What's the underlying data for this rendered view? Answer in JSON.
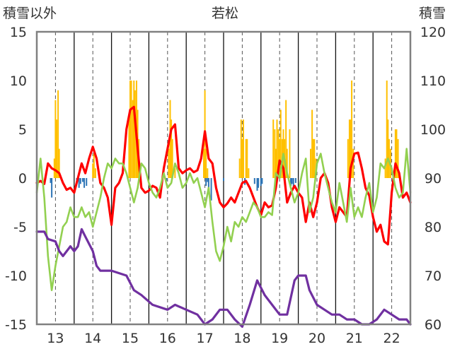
{
  "chart_data": {
    "type": "bar+line",
    "title": "若松",
    "ylabel_left": "積雪以外",
    "ylabel_right": "積雪",
    "x_ticks": [
      "13",
      "14",
      "15",
      "16",
      "17",
      "18",
      "19",
      "20",
      "21",
      "22"
    ],
    "xlim": [
      12.5,
      22.5
    ],
    "ylim_left": [
      -15,
      15
    ],
    "ylim_right": [
      60,
      120
    ],
    "y_ticks_left": [
      "15",
      "10",
      "5",
      "0",
      "-5",
      "-10",
      "-15"
    ],
    "y_ticks_right": [
      "120",
      "110",
      "100",
      "90",
      "80",
      "70",
      "60"
    ],
    "grid": "vertical-dashed",
    "colors": {
      "snowfall_bars": "#FFC000",
      "precip_bars": "#2E75B6",
      "red_line": "#FF0000",
      "green_line": "#92D050",
      "purple_line": "#7030A0",
      "frame": "#808080"
    },
    "series": [
      {
        "type": "bar",
        "axis": "left",
        "color": "#FFC000",
        "x": [
          12.97,
          13.0,
          13.03,
          13.07,
          13.1,
          14.0,
          14.03,
          14.07,
          14.97,
          15.0,
          15.03,
          15.07,
          15.1,
          15.13,
          15.17,
          15.2,
          15.23,
          16.03,
          16.07,
          16.1,
          16.13,
          16.2,
          16.97,
          17.0,
          17.03,
          17.07,
          17.93,
          17.97,
          18.0,
          18.03,
          18.1,
          18.13,
          18.17,
          18.83,
          18.87,
          18.9,
          18.93,
          18.97,
          19.0,
          19.03,
          19.07,
          19.1,
          19.13,
          19.17,
          19.2,
          19.27,
          19.83,
          19.87,
          19.9,
          19.93,
          19.97,
          20.83,
          20.87,
          20.9,
          20.93,
          20.97,
          21.83,
          21.87,
          21.9,
          21.93,
          21.97,
          22.1,
          22.13,
          22.17
        ],
        "values": [
          2,
          8,
          6,
          9,
          3,
          1.5,
          2.5,
          1.0,
          6,
          10,
          10,
          8,
          10,
          9,
          10,
          7,
          4,
          3,
          8,
          6,
          4,
          1,
          3,
          9,
          3,
          1,
          2,
          6,
          4,
          6,
          4,
          4,
          1,
          6,
          5,
          3,
          6,
          5,
          4,
          7,
          4,
          5,
          4,
          8,
          3,
          5,
          3,
          7,
          4,
          4,
          2,
          4,
          6,
          6,
          10,
          3,
          2,
          10,
          6,
          4,
          3,
          5,
          5,
          4
        ]
      },
      {
        "type": "bar",
        "axis": "left",
        "color": "#2E75B6",
        "x": [
          12.87,
          12.9,
          13.57,
          13.63,
          13.67,
          13.73,
          13.77,
          13.83,
          15.97,
          17.03,
          17.07,
          17.1,
          17.17,
          17.5,
          18.07,
          18.33,
          18.4,
          18.43,
          18.5,
          18.53,
          19.3,
          19.33,
          19.37,
          19.43
        ],
        "values": [
          -0.5,
          -2,
          -0.5,
          -1,
          -0.6,
          -0.4,
          -1,
          -0.8,
          -0.3,
          -0.8,
          -0.4,
          -1.3,
          -2.3,
          -0.3,
          -0.7,
          -0.6,
          -1.3,
          -1.0,
          -0.8,
          -0.6,
          -0.8,
          -0.6,
          -1.0,
          -0.5
        ]
      },
      {
        "type": "line",
        "axis": "left",
        "color": "#FF0000",
        "x": [
          12.5,
          12.6,
          12.7,
          12.8,
          12.9,
          13.0,
          13.1,
          13.2,
          13.3,
          13.4,
          13.5,
          13.6,
          13.7,
          13.8,
          13.9,
          14.0,
          14.1,
          14.2,
          14.3,
          14.4,
          14.5,
          14.6,
          14.7,
          14.8,
          14.9,
          15.0,
          15.1,
          15.2,
          15.3,
          15.4,
          15.5,
          15.6,
          15.7,
          15.8,
          15.9,
          16.0,
          16.1,
          16.2,
          16.3,
          16.4,
          16.5,
          16.6,
          16.7,
          16.8,
          16.9,
          17.0,
          17.1,
          17.2,
          17.3,
          17.4,
          17.5,
          17.6,
          17.7,
          17.8,
          17.9,
          18.0,
          18.1,
          18.2,
          18.3,
          18.4,
          18.5,
          18.6,
          18.7,
          18.8,
          18.9,
          19.0,
          19.1,
          19.2,
          19.3,
          19.4,
          19.5,
          19.6,
          19.7,
          19.8,
          19.9,
          20.0,
          20.1,
          20.2,
          20.3,
          20.4,
          20.5,
          20.6,
          20.7,
          20.8,
          20.9,
          21.0,
          21.1,
          21.2,
          21.3,
          21.4,
          21.5,
          21.6,
          21.7,
          21.8,
          21.9,
          22.0,
          22.1,
          22.2,
          22.3,
          22.4,
          22.5
        ],
        "values": [
          -0.5,
          -0.3,
          -0.6,
          1.5,
          1.0,
          0.8,
          0.5,
          -0.5,
          -1.2,
          -1.0,
          -1.5,
          0.0,
          1.5,
          0.5,
          2.0,
          3.2,
          2.0,
          -0.5,
          -1.0,
          -2.0,
          -4.8,
          -1.0,
          -0.5,
          0.5,
          5.0,
          7.0,
          7.3,
          3.0,
          -1.0,
          -1.5,
          -1.3,
          -0.8,
          -1.0,
          -2.0,
          1.0,
          3.0,
          5.0,
          5.5,
          1.0,
          0.5,
          0.8,
          1.0,
          0.6,
          0.8,
          2.0,
          4.8,
          2.0,
          1.5,
          -1.0,
          -2.5,
          -3.0,
          -2.6,
          -2.0,
          -2.5,
          -1.5,
          -0.5,
          -0.3,
          -1.0,
          -2.0,
          -3.0,
          -3.8,
          -2.5,
          -3.0,
          -2.8,
          -1.0,
          1.8,
          1.0,
          -2.5,
          -1.5,
          -0.8,
          -1.5,
          -2.0,
          -4.5,
          -2.5,
          -4.0,
          -2.5,
          0.0,
          0.5,
          -0.5,
          -3.0,
          -4.5,
          -3.0,
          -3.5,
          -4.0,
          1.0,
          2.5,
          2.6,
          1.0,
          -1.0,
          -1.8,
          -4.0,
          -5.5,
          -4.8,
          -6.5,
          -6.8,
          -1.5,
          1.5,
          0.5,
          -2.0,
          -1.5,
          -2.5
        ]
      },
      {
        "type": "line",
        "axis": "left",
        "color": "#92D050",
        "x": [
          12.5,
          12.6,
          12.7,
          12.8,
          12.9,
          13.0,
          13.1,
          13.2,
          13.3,
          13.4,
          13.5,
          13.6,
          13.7,
          13.8,
          13.9,
          14.0,
          14.1,
          14.2,
          14.3,
          14.4,
          14.5,
          14.6,
          14.7,
          14.8,
          14.9,
          15.0,
          15.1,
          15.2,
          15.3,
          15.4,
          15.5,
          15.6,
          15.7,
          15.8,
          15.9,
          16.0,
          16.1,
          16.2,
          16.3,
          16.4,
          16.5,
          16.6,
          16.7,
          16.8,
          16.9,
          17.0,
          17.1,
          17.2,
          17.3,
          17.4,
          17.5,
          17.6,
          17.7,
          17.8,
          17.9,
          18.0,
          18.1,
          18.2,
          18.3,
          18.4,
          18.5,
          18.6,
          18.7,
          18.8,
          18.9,
          19.0,
          19.1,
          19.2,
          19.3,
          19.4,
          19.5,
          19.6,
          19.7,
          19.8,
          19.9,
          20.0,
          20.1,
          20.2,
          20.3,
          20.4,
          20.5,
          20.6,
          20.7,
          20.8,
          20.9,
          21.0,
          21.1,
          21.2,
          21.3,
          21.4,
          21.5,
          21.6,
          21.7,
          21.8,
          21.9,
          22.0,
          22.1,
          22.2,
          22.3,
          22.4,
          22.5
        ],
        "values": [
          -1.5,
          2.0,
          -2.0,
          -8.0,
          -11.5,
          -9.0,
          -7.0,
          -5.0,
          -4.5,
          -3.0,
          -4.0,
          -4.0,
          -3.0,
          -4.0,
          -3.5,
          -5.0,
          -3.5,
          -2.0,
          0.0,
          1.5,
          1.0,
          2.0,
          1.5,
          1.5,
          0.5,
          -1.0,
          -2.5,
          -1.0,
          1.5,
          1.0,
          -0.5,
          -1.5,
          -2.0,
          -1.0,
          0.5,
          -1.0,
          -0.5,
          1.5,
          0.5,
          -1.0,
          -0.5,
          0.5,
          -0.5,
          0.0,
          -1.5,
          -3.0,
          -1.0,
          -4.5,
          -7.5,
          -8.5,
          -7.0,
          -5.0,
          -6.5,
          -4.5,
          -5.0,
          -4.0,
          -4.5,
          -3.5,
          -2.5,
          -3.0,
          -4.0,
          -4.0,
          -3.5,
          -3.8,
          0.5,
          0.0,
          2.5,
          0.5,
          -1.0,
          -2.5,
          -1.5,
          0.5,
          2.0,
          -3.5,
          -2.0,
          1.5,
          2.5,
          0.5,
          -1.0,
          -2.5,
          -3.5,
          -0.5,
          -2.5,
          -4.5,
          -1.0,
          -4.0,
          -3.0,
          -4.0,
          -2.0,
          -0.5,
          -3.5,
          -2.0,
          1.5,
          1.0,
          2.0,
          1.0,
          -1.0,
          -2.0,
          -1.5,
          3.0,
          -1.5
        ]
      },
      {
        "type": "line",
        "axis": "right",
        "color": "#7030A0",
        "x": [
          12.5,
          12.7,
          12.8,
          13.0,
          13.1,
          13.2,
          13.4,
          13.5,
          13.6,
          13.7,
          13.8,
          14.0,
          14.1,
          14.2,
          14.5,
          14.9,
          15.1,
          15.3,
          15.6,
          16.0,
          16.2,
          16.5,
          16.8,
          16.9,
          17.0,
          17.2,
          17.4,
          17.6,
          17.8,
          18.0,
          18.2,
          18.4,
          18.6,
          18.8,
          19.0,
          19.2,
          19.4,
          19.5,
          19.7,
          19.8,
          20.0,
          20.2,
          20.4,
          20.6,
          20.8,
          21.0,
          21.2,
          21.4,
          21.6,
          21.8,
          22.0,
          22.2,
          22.4,
          22.5
        ],
        "values": [
          79,
          79,
          77.5,
          77,
          75,
          74,
          76,
          75,
          76,
          79.5,
          78,
          75,
          72,
          71,
          71,
          70,
          67,
          66,
          64,
          63,
          64,
          63,
          62,
          61,
          60,
          61,
          63,
          63,
          61,
          59.5,
          64,
          69,
          66,
          64,
          62,
          62,
          69,
          70,
          70,
          67,
          64,
          63,
          62,
          62,
          61,
          61,
          60,
          60,
          61,
          63,
          62,
          61,
          61,
          60
        ]
      }
    ]
  }
}
